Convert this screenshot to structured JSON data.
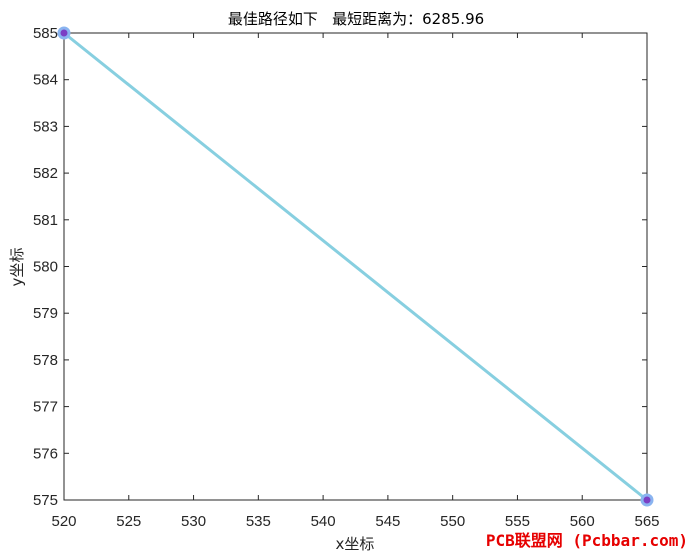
{
  "chart_data": {
    "type": "line",
    "title": "最佳路径如下   最短距离为：6285.96",
    "xlabel": "x坐标",
    "ylabel": "y坐标",
    "xlim": [
      520,
      565
    ],
    "ylim": [
      575,
      585
    ],
    "x_ticks": [
      520,
      525,
      530,
      535,
      540,
      545,
      550,
      555,
      560,
      565
    ],
    "y_ticks": [
      575,
      576,
      577,
      578,
      579,
      580,
      581,
      582,
      583,
      584,
      585
    ],
    "grid": false,
    "legend": "none",
    "series": [
      {
        "x": [
          520,
          565
        ],
        "y": [
          585,
          575
        ],
        "line_color": "#87cfe0",
        "marker_color": "#7b3fc4",
        "marker_edge_color": "#8ab4f0"
      }
    ]
  },
  "watermark": {
    "text": "PCB联盟网 (Pcbbar.com)"
  }
}
